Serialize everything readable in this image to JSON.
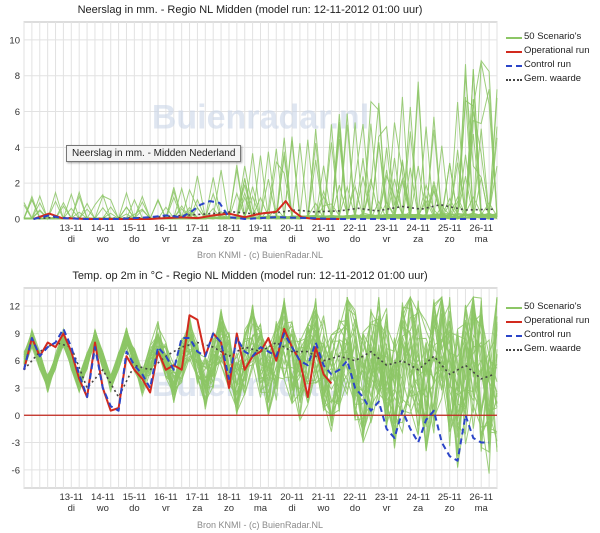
{
  "colors": {
    "scenario": "#8cc665",
    "operational": "#d22a1e",
    "control": "#2b45c8",
    "mean": "#444444",
    "grid": "#e2e2e2",
    "zero_line": "#c0261c",
    "watermark": "#c9d6e8"
  },
  "watermark_text": "Buienradar.nl",
  "charts": [
    {
      "title": "Neerslag in mm. - Regio NL Midden (model run: 12-11-2012 01:00 uur)",
      "credit": "Bron KNMI - (c) BuienRadar.NL",
      "tooltip": "Neerslag in mm. - Midden Nederland",
      "legend": {
        "scenarios": "50 Scenario's",
        "operational": "Operational run",
        "control": "Control run",
        "mean": "Gem. waarde"
      }
    },
    {
      "title": "Temp. op 2m in °C - Regio NL Midden (model run: 12-11-2012 01:00 uur)",
      "credit": "Bron KNMI - (c) BuienRadar.NL",
      "legend": {
        "scenarios": "50 Scenario's",
        "operational": "Operational run",
        "control": "Control run",
        "mean": "Gem. waarde"
      }
    }
  ],
  "chart_data": [
    {
      "type": "line",
      "title": "Neerslag in mm. - Regio NL Midden (model run: 12-11-2012 01:00 uur)",
      "xlabel": "",
      "ylabel": "",
      "ylim": [
        0,
        11
      ],
      "yticks": [
        0,
        2,
        4,
        6,
        8,
        10
      ],
      "x_dates": [
        "13-11",
        "14-11",
        "15-11",
        "16-11",
        "17-11",
        "18-11",
        "19-11",
        "20-11",
        "21-11",
        "22-11",
        "23-11",
        "24-11",
        "25-11",
        "26-11"
      ],
      "x_days": [
        "di",
        "wo",
        "do",
        "vr",
        "za",
        "zo",
        "ma",
        "di",
        "wo",
        "do",
        "vr",
        "za",
        "zo",
        "ma"
      ],
      "grid": true,
      "legend_position": "right",
      "series": [
        {
          "name": "Operational run",
          "x": [
            12.3,
            12.8,
            13.2,
            14,
            15,
            16,
            16.5,
            17,
            17.5,
            18,
            18.5,
            19,
            19.5,
            20,
            20.3,
            20.5,
            20.8,
            21,
            21.2,
            22
          ],
          "y": [
            0,
            0.3,
            0.05,
            0,
            0,
            0,
            0.05,
            0.1,
            0.05,
            0.2,
            0.3,
            0.1,
            0.3,
            0.4,
            1.0,
            0.5,
            0.1,
            0.05,
            0,
            0
          ]
        },
        {
          "name": "Control run",
          "x": [
            12.3,
            12.8,
            13.2,
            14,
            15,
            16,
            16.5,
            17,
            17.3,
            17.6,
            17.9,
            18.2,
            18.5,
            18.8,
            19,
            20,
            21,
            22,
            23,
            24,
            25,
            26,
            26.9
          ],
          "y": [
            0,
            0.2,
            0.05,
            0,
            0,
            0.1,
            0.2,
            0.1,
            0.4,
            0.8,
            1.0,
            0.9,
            0.1,
            0.05,
            0,
            0.1,
            0.05,
            0,
            0,
            0,
            0,
            0,
            0
          ]
        },
        {
          "name": "Gem. waarde",
          "x": [
            12.3,
            13,
            14,
            15,
            16,
            17,
            18,
            18.6,
            19.2,
            20,
            20.6,
            21.2,
            22,
            22.6,
            23.2,
            24,
            24.6,
            25.2,
            26,
            26.9
          ],
          "y": [
            0,
            0.1,
            0.02,
            0.05,
            0.08,
            0.2,
            0.3,
            0.4,
            0.3,
            0.35,
            0.5,
            0.4,
            0.45,
            0.6,
            0.45,
            0.7,
            0.55,
            0.8,
            0.5,
            0.55
          ]
        }
      ]
    },
    {
      "type": "line",
      "title": "Temp. op 2m in °C - Regio NL Midden (model run: 12-11-2012 01:00 uur)",
      "xlabel": "",
      "ylabel": "",
      "ylim": [
        -8,
        14
      ],
      "yticks": [
        -6,
        -3,
        0,
        3,
        6,
        9,
        12
      ],
      "x_dates": [
        "13-11",
        "14-11",
        "15-11",
        "16-11",
        "17-11",
        "18-11",
        "19-11",
        "20-11",
        "21-11",
        "22-11",
        "23-11",
        "24-11",
        "25-11",
        "26-11"
      ],
      "x_days": [
        "di",
        "wo",
        "do",
        "vr",
        "za",
        "zo",
        "ma",
        "di",
        "wo",
        "do",
        "vr",
        "za",
        "zo",
        "ma"
      ],
      "grid": true,
      "legend_position": "right",
      "series": [
        {
          "name": "Operational run",
          "x": [
            12.0,
            12.25,
            12.5,
            12.75,
            13.0,
            13.25,
            13.5,
            13.75,
            14.0,
            14.25,
            14.5,
            14.75,
            15.0,
            15.25,
            15.5,
            15.75,
            16.0,
            16.25,
            16.5,
            16.75,
            17.0,
            17.25,
            17.5,
            17.75,
            18.0,
            18.25,
            18.5,
            18.75,
            19.0,
            19.25,
            19.5,
            19.75,
            20.0,
            20.25,
            20.5,
            20.75,
            21.0,
            21.25,
            21.5,
            21.75
          ],
          "y": [
            5.0,
            8.5,
            6.5,
            8.0,
            7.5,
            9.0,
            7.0,
            4.0,
            2.0,
            8.0,
            3.0,
            0.5,
            0.8,
            6.5,
            5.0,
            4.0,
            2.5,
            7.0,
            5.0,
            5.5,
            5.0,
            11.0,
            10.5,
            6.5,
            9.0,
            8.0,
            3.0,
            9.0,
            5.0,
            6.5,
            7.0,
            8.5,
            6.0,
            9.5,
            7.5,
            6.0,
            2.0,
            7.5,
            4.5,
            3.5
          ]
        },
        {
          "name": "Control run",
          "x": [
            12.0,
            12.25,
            12.5,
            12.75,
            13.0,
            13.25,
            13.5,
            13.75,
            14.0,
            14.25,
            14.5,
            14.75,
            15.0,
            15.25,
            15.5,
            15.75,
            16.0,
            16.25,
            16.5,
            16.75,
            17.0,
            17.25,
            17.5,
            17.75,
            18.0,
            18.25,
            18.5,
            18.75,
            19.0,
            19.25,
            19.5,
            19.75,
            20.0,
            20.25,
            20.5,
            20.75,
            21.0,
            21.25,
            21.5,
            21.75,
            22.0,
            22.25,
            22.5,
            22.75,
            23.0,
            23.25,
            23.5,
            23.75,
            24.0,
            24.25,
            24.5,
            24.75,
            25.0,
            25.25,
            25.5,
            25.75,
            26.0,
            26.25,
            26.5,
            26.75
          ],
          "y": [
            5.0,
            8.5,
            6.5,
            7.5,
            8.0,
            9.5,
            7.5,
            4.5,
            2.0,
            7.5,
            3.0,
            1.0,
            0.5,
            7.0,
            5.5,
            4.5,
            3.0,
            7.5,
            6.5,
            5.0,
            8.5,
            8.5,
            7.0,
            6.5,
            9.0,
            8.0,
            4.0,
            8.5,
            7.0,
            6.5,
            7.5,
            7.0,
            6.5,
            9.0,
            7.5,
            6.0,
            5.5,
            8.0,
            5.5,
            4.5,
            5.0,
            6.0,
            3.0,
            2.0,
            0.5,
            1.5,
            -1.5,
            -2.5,
            0.5,
            -1.5,
            -3.0,
            -0.5,
            0.5,
            -3.0,
            -4.5,
            -5.0,
            0.0,
            -2.5,
            -3.0,
            -3.0
          ]
        },
        {
          "name": "Gem. waarde",
          "x": [
            12.0,
            12.5,
            13.0,
            13.5,
            14.0,
            14.5,
            15.0,
            15.5,
            16.0,
            16.5,
            17.0,
            17.5,
            18.0,
            18.5,
            19.0,
            19.5,
            20.0,
            20.5,
            21.0,
            21.5,
            22.0,
            22.5,
            23.0,
            23.5,
            24.0,
            24.5,
            25.0,
            25.5,
            26.0,
            26.5,
            26.9
          ],
          "y": [
            5.0,
            7.0,
            8.0,
            7.5,
            3.0,
            5.0,
            2.0,
            5.5,
            5.0,
            6.5,
            7.5,
            8.0,
            7.5,
            6.5,
            7.5,
            7.0,
            8.0,
            7.0,
            7.0,
            6.0,
            6.5,
            6.0,
            7.0,
            5.5,
            6.0,
            5.0,
            6.5,
            4.5,
            5.5,
            4.0,
            4.5
          ]
        }
      ]
    }
  ]
}
